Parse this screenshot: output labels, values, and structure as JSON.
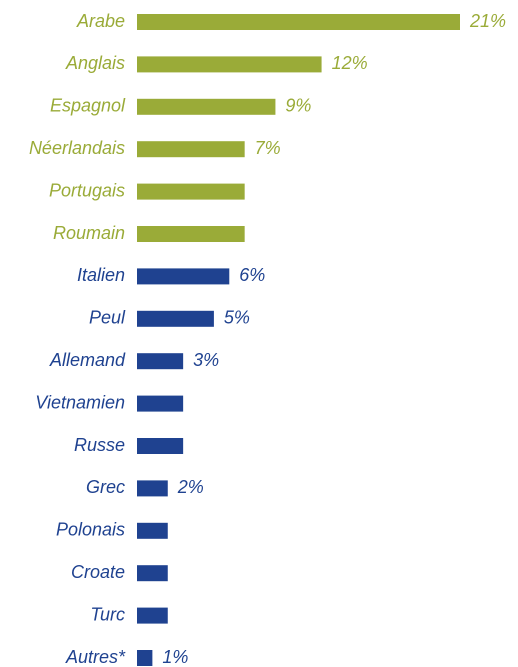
{
  "chart_data": {
    "type": "bar",
    "orientation": "horizontal",
    "categories": [
      "Arabe",
      "Anglais",
      "Espagnol",
      "Néerlandais",
      "Portugais",
      "Roumain",
      "Italien",
      "Peul",
      "Allemand",
      "Vietnamien",
      "Russe",
      "Grec",
      "Polonais",
      "Croate",
      "Turc",
      "Autres*"
    ],
    "values": [
      21,
      12,
      9,
      7,
      7,
      7,
      6,
      5,
      3,
      3,
      3,
      2,
      2,
      2,
      2,
      1
    ],
    "value_labels": [
      "21%",
      "12%",
      "9%",
      "7%",
      null,
      null,
      "6%",
      "5%",
      "3%",
      null,
      null,
      "2%",
      null,
      null,
      null,
      "1%"
    ],
    "colors": [
      "#9aab38",
      "#9aab38",
      "#9aab38",
      "#9aab38",
      "#9aab38",
      "#9aab38",
      "#1f4290",
      "#1f4290",
      "#1f4290",
      "#1f4290",
      "#1f4290",
      "#1f4290",
      "#1f4290",
      "#1f4290",
      "#1f4290",
      "#1f4290"
    ]
  }
}
